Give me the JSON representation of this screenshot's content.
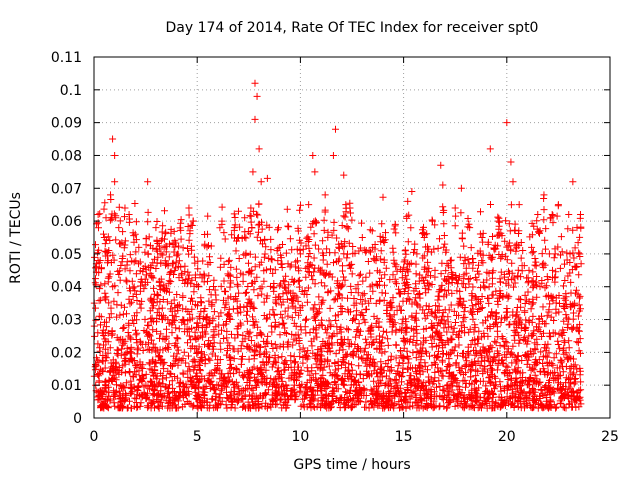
{
  "chart_data": {
    "type": "scatter",
    "title": "Day 174 of 2014, Rate Of TEC Index for receiver spt0",
    "xlabel": "GPS time / hours",
    "ylabel": "ROTI / TECUs",
    "xlim": [
      0,
      25
    ],
    "ylim": [
      0,
      0.11
    ],
    "x_ticks": [
      "0",
      "5",
      "10",
      "15",
      "20",
      "25"
    ],
    "y_ticks": [
      "0",
      "0.01",
      "0.02",
      "0.03",
      "0.04",
      "0.05",
      "0.06",
      "0.07",
      "0.08",
      "0.09",
      "0.1",
      "0.11"
    ],
    "grid": true,
    "marker": "+",
    "color": "#ff0000",
    "series": [
      {
        "name": "ROTI",
        "points": [
          [
            0.2,
            0.062
          ],
          [
            0.3,
            0.048
          ],
          [
            0.5,
            0.055
          ],
          [
            0.8,
            0.068
          ],
          [
            0.9,
            0.085
          ],
          [
            1.0,
            0.08
          ],
          [
            1.0,
            0.072
          ],
          [
            1.2,
            0.058
          ],
          [
            1.5,
            0.064
          ],
          [
            1.7,
            0.062
          ],
          [
            2.0,
            0.056
          ],
          [
            2.6,
            0.072
          ],
          [
            3.0,
            0.058
          ],
          [
            3.4,
            0.052
          ],
          [
            3.8,
            0.047
          ],
          [
            4.2,
            0.046
          ],
          [
            4.6,
            0.064
          ],
          [
            4.8,
            0.06
          ],
          [
            5.5,
            0.056
          ],
          [
            6.2,
            0.06
          ],
          [
            6.8,
            0.058
          ],
          [
            7.0,
            0.055
          ],
          [
            7.3,
            0.061
          ],
          [
            7.6,
            0.064
          ],
          [
            7.7,
            0.075
          ],
          [
            7.8,
            0.091
          ],
          [
            7.8,
            0.102
          ],
          [
            7.9,
            0.098
          ],
          [
            8.0,
            0.082
          ],
          [
            8.1,
            0.072
          ],
          [
            8.4,
            0.073
          ],
          [
            9.0,
            0.052
          ],
          [
            9.4,
            0.047
          ],
          [
            10.0,
            0.05
          ],
          [
            10.4,
            0.065
          ],
          [
            10.6,
            0.08
          ],
          [
            10.7,
            0.075
          ],
          [
            11.2,
            0.068
          ],
          [
            11.6,
            0.08
          ],
          [
            11.7,
            0.088
          ],
          [
            12.1,
            0.074
          ],
          [
            12.2,
            0.065
          ],
          [
            12.4,
            0.064
          ],
          [
            13.0,
            0.055
          ],
          [
            13.5,
            0.052
          ],
          [
            14.0,
            0.055
          ],
          [
            14.6,
            0.059
          ],
          [
            15.2,
            0.066
          ],
          [
            15.4,
            0.069
          ],
          [
            16.0,
            0.055
          ],
          [
            16.4,
            0.06
          ],
          [
            16.8,
            0.077
          ],
          [
            16.9,
            0.071
          ],
          [
            17.5,
            0.064
          ],
          [
            17.8,
            0.07
          ],
          [
            18.2,
            0.058
          ],
          [
            18.8,
            0.055
          ],
          [
            19.2,
            0.082
          ],
          [
            19.6,
            0.06
          ],
          [
            20.0,
            0.09
          ],
          [
            20.2,
            0.078
          ],
          [
            20.3,
            0.072
          ],
          [
            20.6,
            0.065
          ],
          [
            21.2,
            0.052
          ],
          [
            21.5,
            0.062
          ],
          [
            21.8,
            0.068
          ],
          [
            22.2,
            0.062
          ],
          [
            22.5,
            0.065
          ],
          [
            23.0,
            0.062
          ],
          [
            23.2,
            0.072
          ],
          [
            23.4,
            0.058
          ],
          [
            23.6,
            0.047
          ]
        ]
      }
    ],
    "dense_band": {
      "x_range": [
        0,
        23.6
      ],
      "y_min": 0.003,
      "y_typical_max": 0.04
    }
  }
}
